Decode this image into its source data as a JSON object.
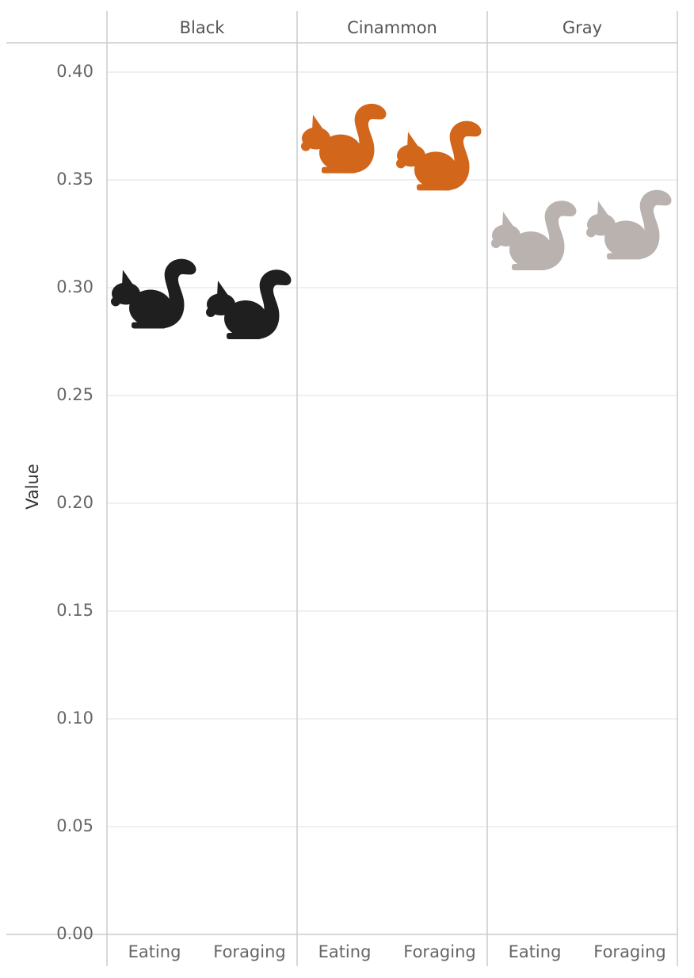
{
  "chart_data": {
    "type": "scatter",
    "mark": "squirrel-icon",
    "ylabel": "Value",
    "ylim": [
      0,
      0.4
    ],
    "y_ticks": [
      "0.00",
      "0.05",
      "0.10",
      "0.15",
      "0.20",
      "0.25",
      "0.30",
      "0.35",
      "0.40"
    ],
    "grid": true,
    "panels": [
      {
        "label": "Black",
        "color": "#1f1f1f",
        "categories": [
          "Eating",
          "Foraging"
        ],
        "values": [
          0.298,
          0.293
        ]
      },
      {
        "label": "Cinammon",
        "color": "#d2671c",
        "categories": [
          "Eating",
          "Foraging"
        ],
        "values": [
          0.37,
          0.362
        ]
      },
      {
        "label": "Gray",
        "color": "#bab2af",
        "categories": [
          "Eating",
          "Foraging"
        ],
        "values": [
          0.325,
          0.33
        ]
      }
    ]
  }
}
